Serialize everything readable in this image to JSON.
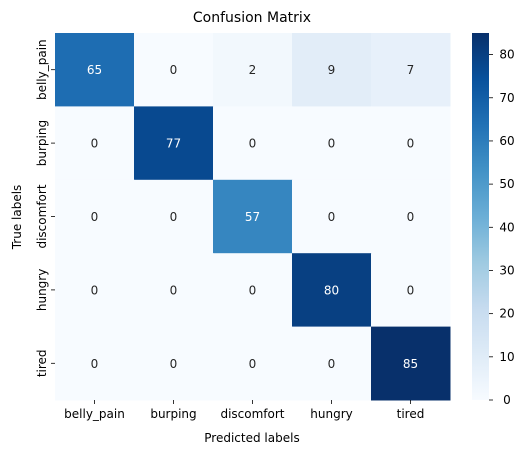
{
  "chart_data": {
    "type": "heatmap",
    "title": "Confusion Matrix",
    "xlabel": "Predicted labels",
    "ylabel": "True labels",
    "x_categories": [
      "belly_pain",
      "burping",
      "discomfort",
      "hungry",
      "tired"
    ],
    "y_categories": [
      "belly_pain",
      "burping",
      "discomfort",
      "hungry",
      "tired"
    ],
    "values": [
      [
        65,
        0,
        2,
        9,
        7
      ],
      [
        0,
        77,
        0,
        0,
        0
      ],
      [
        0,
        0,
        57,
        0,
        0
      ],
      [
        0,
        0,
        0,
        80,
        0
      ],
      [
        0,
        0,
        0,
        0,
        85
      ]
    ],
    "colormap": "Blues",
    "colorbar": {
      "min": 0,
      "max": 85,
      "ticks": [
        0,
        10,
        20,
        30,
        40,
        50,
        60,
        70,
        80
      ]
    }
  }
}
